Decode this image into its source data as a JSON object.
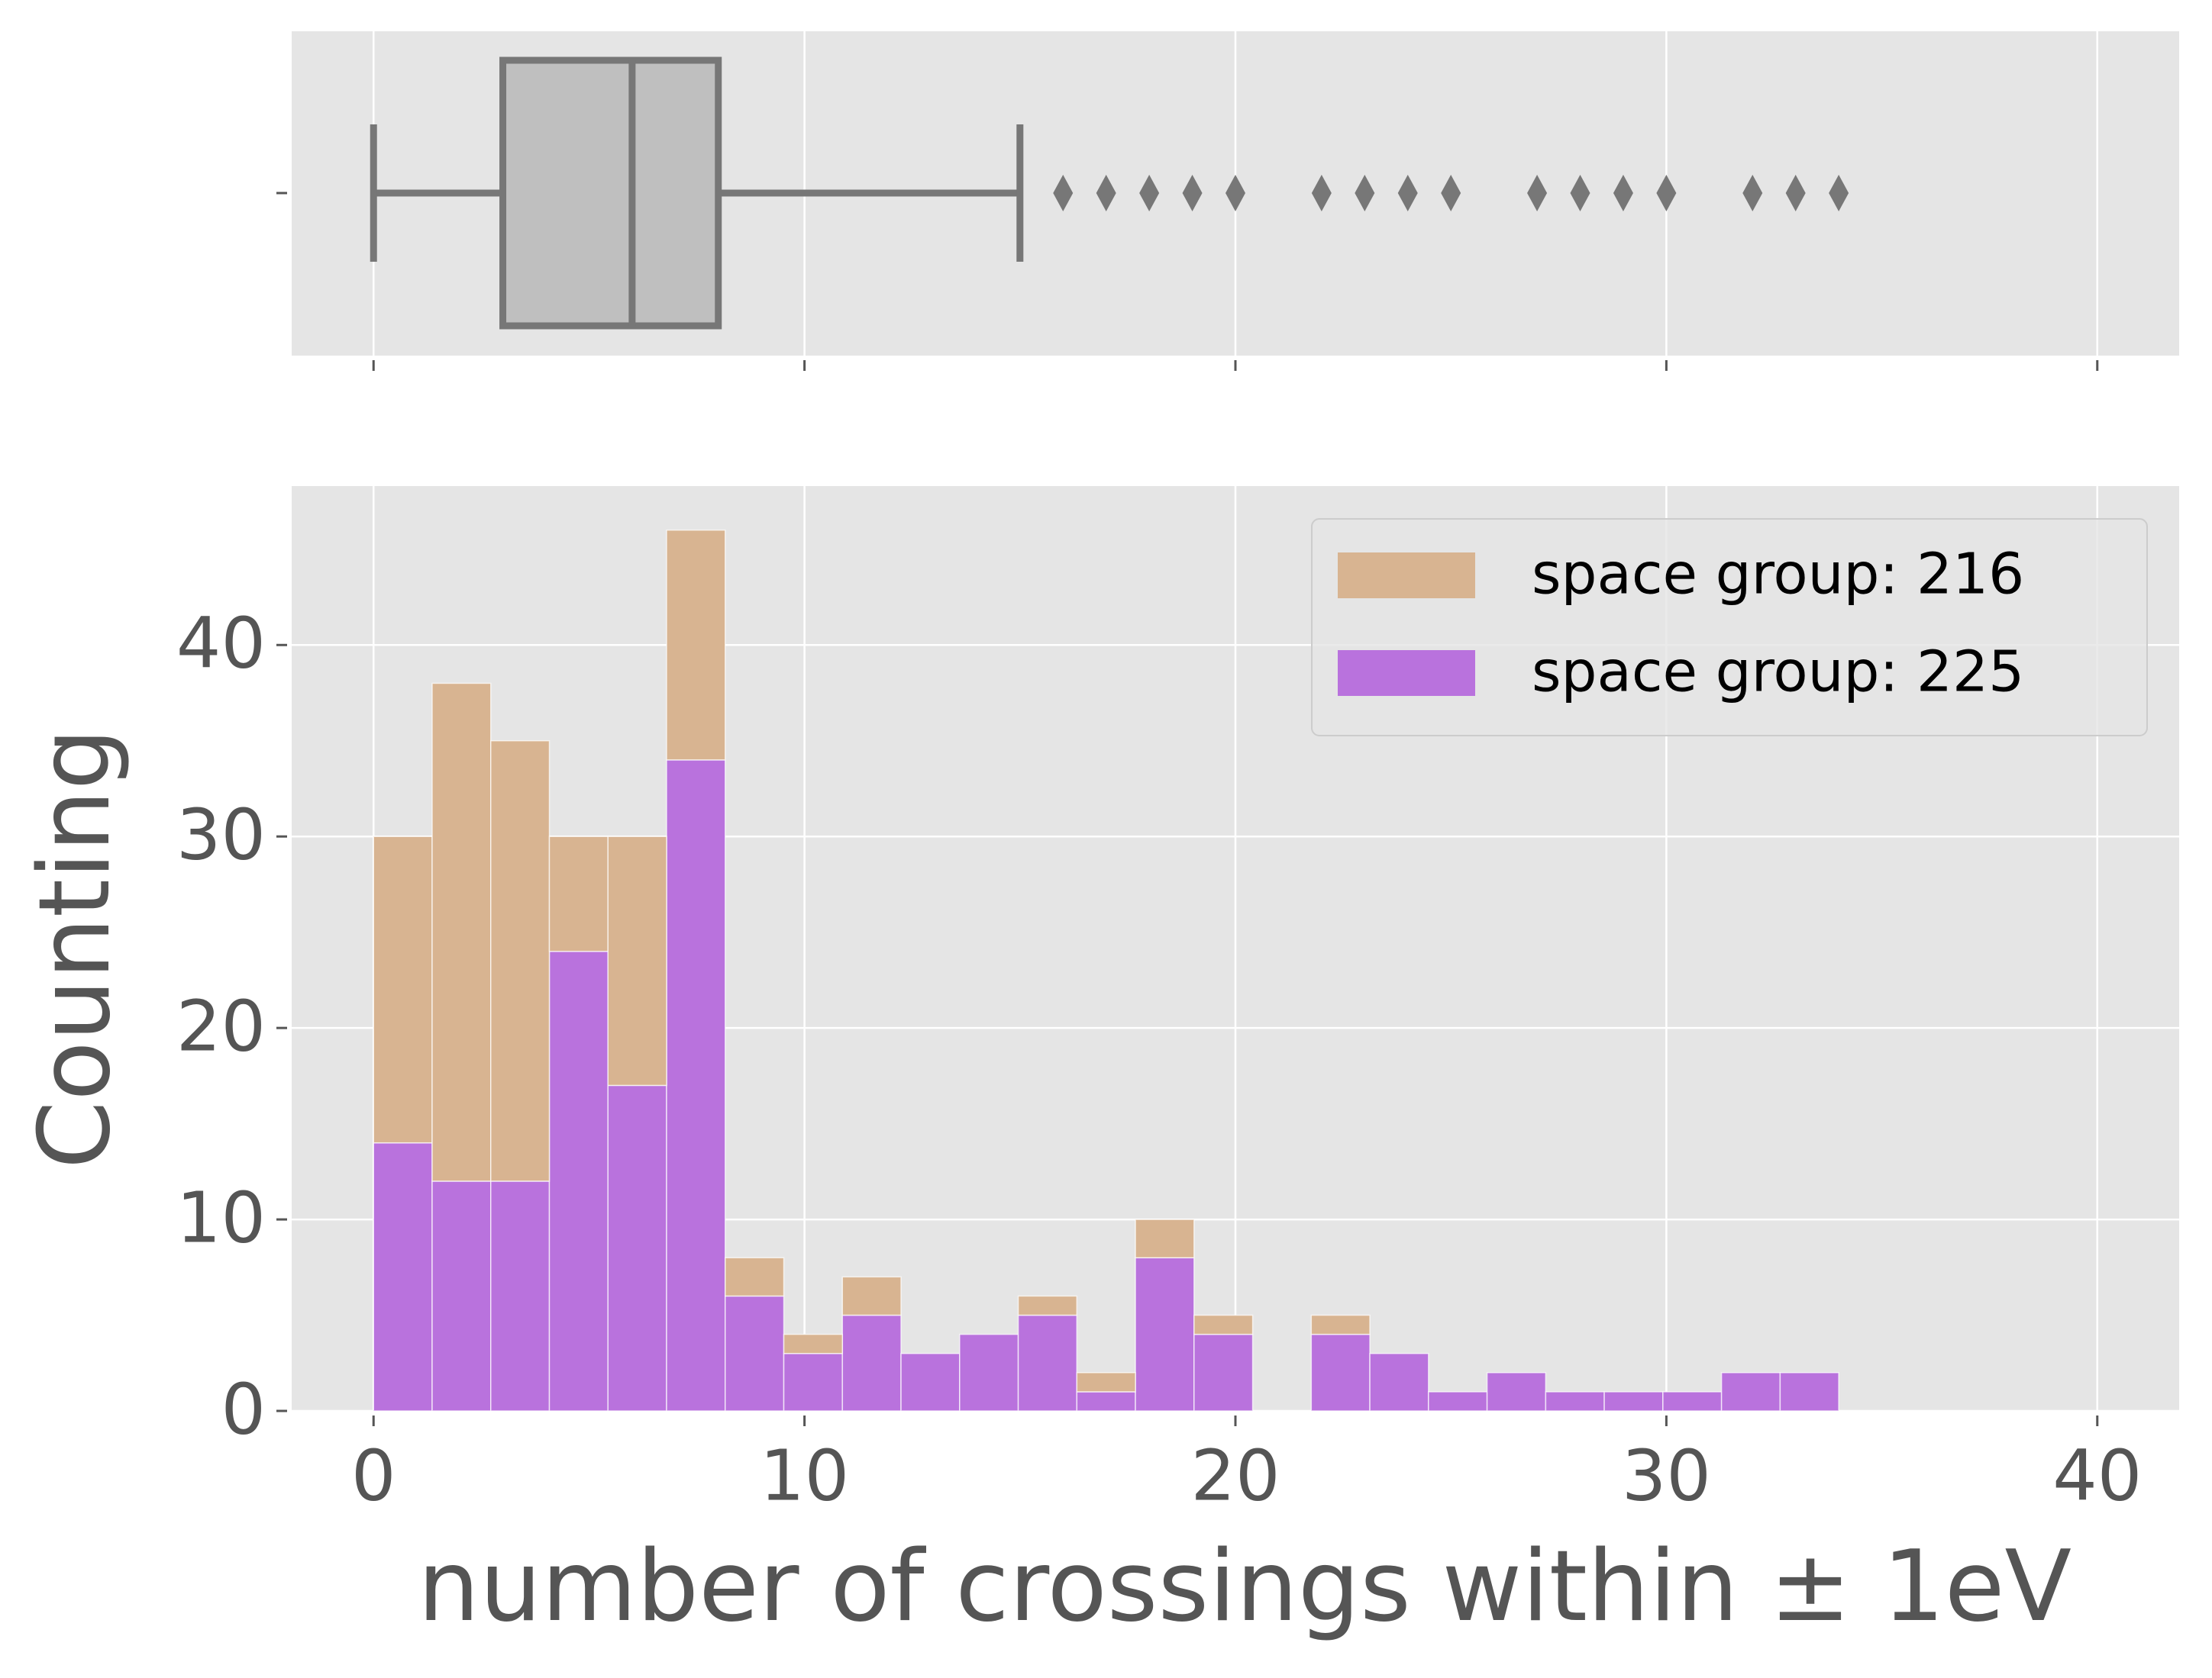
{
  "chart_data": [
    {
      "type": "box",
      "stats": {
        "whislo": 0,
        "q1": 3,
        "med": 6,
        "q3": 8,
        "whishi": 15
      },
      "fliers": [
        16,
        17,
        18,
        19,
        20,
        22,
        23,
        24,
        25,
        27,
        28,
        29,
        30,
        32,
        33,
        34
      ],
      "color": "#bfbfbf",
      "edge_color": "#777777",
      "xlim": [
        -1.9,
        41.9
      ],
      "xticks": [
        0,
        10,
        20,
        30,
        40
      ],
      "grid": true
    },
    {
      "type": "histogram",
      "xlabel": "number of crossings within ± 1eV",
      "ylabel": "Counting",
      "bins": [
        0,
        1.36,
        2.72,
        4.08,
        5.44,
        6.8,
        8.16,
        9.52,
        10.88,
        12.24,
        13.6,
        14.96,
        16.32,
        17.68,
        19.04,
        20.4,
        21.76,
        23.12,
        24.48,
        25.84,
        27.2,
        28.56,
        29.92,
        31.28,
        32.64,
        34
      ],
      "multiple": "stack",
      "series": [
        {
          "name": "space group: 216",
          "color": "#d8b491",
          "values": [
            16,
            26,
            23,
            6,
            13,
            12,
            2,
            1,
            2,
            0,
            0,
            1,
            1,
            2,
            1,
            0,
            1,
            0,
            0,
            0,
            0,
            0,
            0,
            0,
            0
          ]
        },
        {
          "name": "space group: 225",
          "color": "#b972dd",
          "values": [
            14,
            12,
            12,
            24,
            17,
            34,
            6,
            3,
            5,
            3,
            4,
            5,
            1,
            8,
            4,
            0,
            4,
            3,
            1,
            2,
            1,
            1,
            1,
            2,
            2
          ]
        }
      ],
      "xlim": [
        -1.9,
        41.9
      ],
      "xticks": [
        0,
        10,
        20,
        30,
        40
      ],
      "ylim": [
        0,
        48.3
      ],
      "yticks": [
        0,
        10,
        20,
        30,
        40
      ],
      "grid": true,
      "legend": "upper right"
    }
  ]
}
